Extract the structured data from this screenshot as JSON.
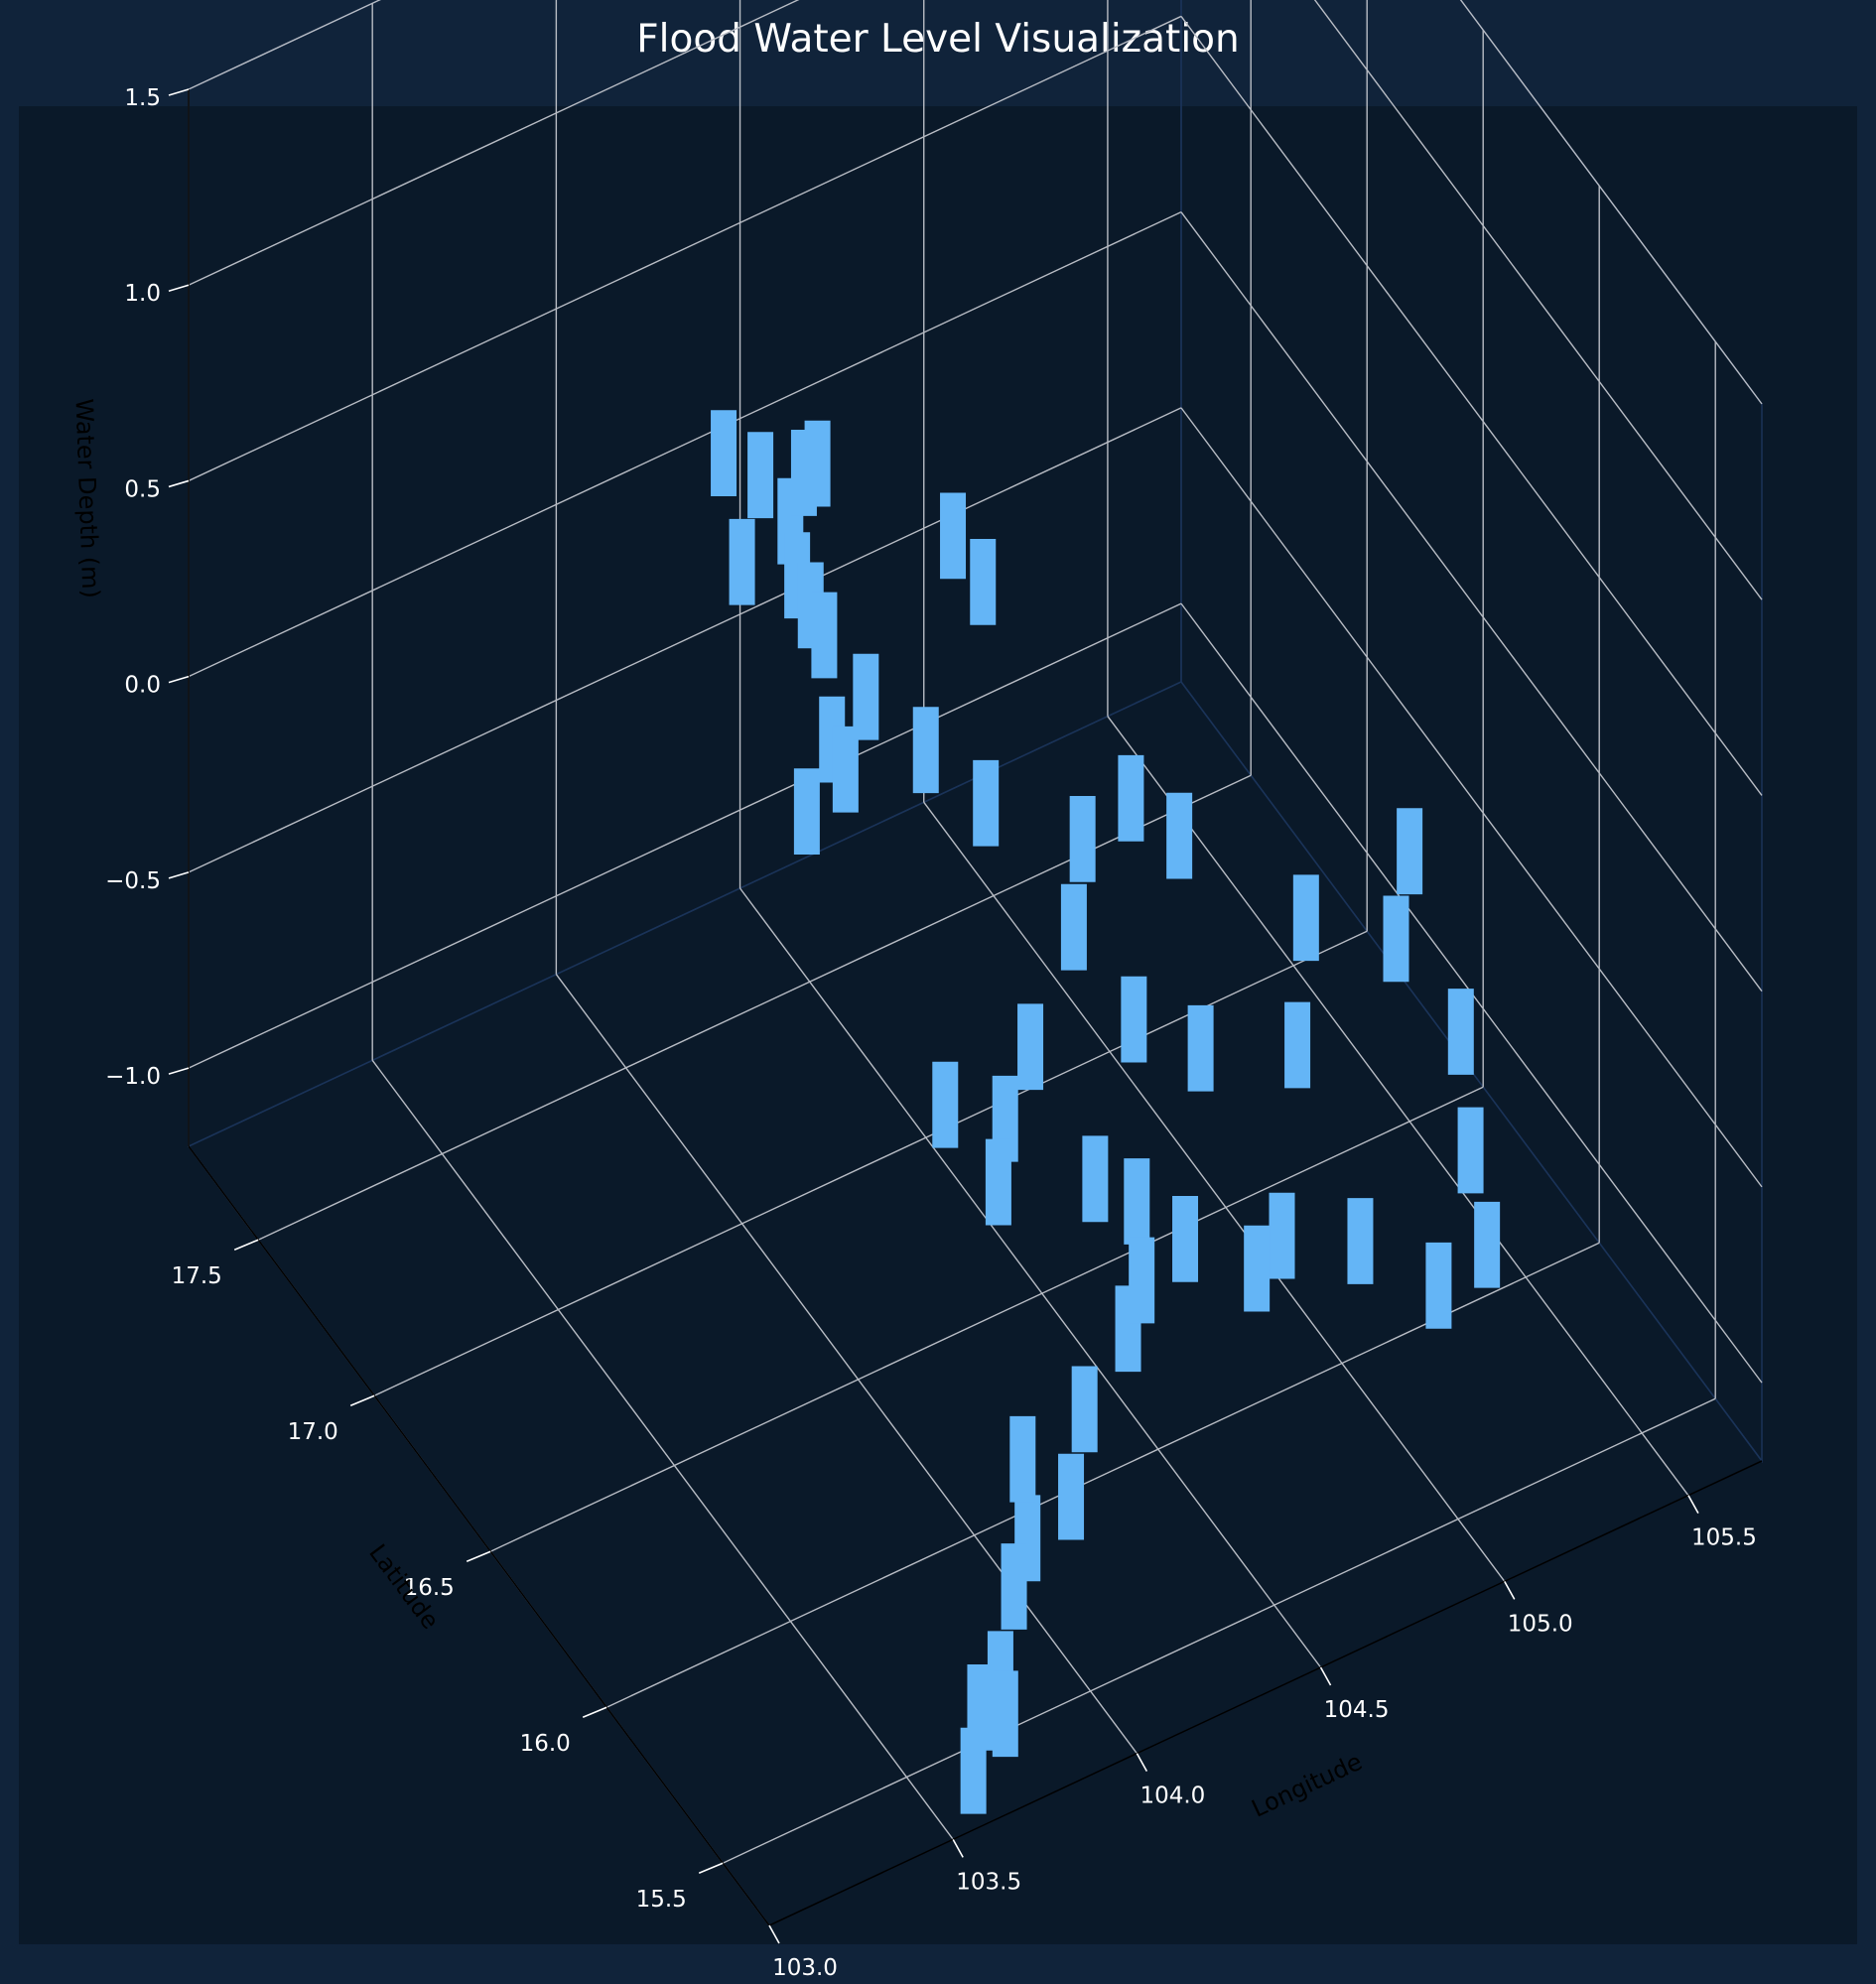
{
  "chart_data": {
    "type": "scatter",
    "title": "Flood Water Level Visualization",
    "xlabel": "Longitude",
    "ylabel": "Latitude",
    "zlabel": "Water Depth (m)",
    "xlim": [
      103.0,
      105.7
    ],
    "ylim": [
      15.3,
      17.8
    ],
    "zlim": [
      -1.2,
      1.5
    ],
    "x_ticks": [
      "103.0",
      "103.5",
      "104.0",
      "104.5",
      "105.0",
      "105.5"
    ],
    "y_ticks": [
      "15.5",
      "16.0",
      "16.5",
      "17.0",
      "17.5"
    ],
    "z_ticks": [
      "−1.0",
      "−0.5",
      "0.0",
      "0.5",
      "1.0",
      "1.5"
    ],
    "grid": true,
    "series": [
      {
        "color": "#64b5f6",
        "points": [
          [
            103.95,
            17.0,
            0.9
          ],
          [
            104.0,
            17.0,
            0.6
          ],
          [
            104.05,
            17.0,
            0.8
          ],
          [
            104.1,
            16.95,
            0.7
          ],
          [
            104.15,
            17.0,
            0.5
          ],
          [
            104.2,
            17.05,
            0.7
          ],
          [
            104.25,
            17.1,
            0.3
          ],
          [
            104.3,
            17.15,
            0.6
          ],
          [
            104.35,
            17.2,
            0.1
          ],
          [
            104.15,
            16.85,
            0.2
          ],
          [
            104.05,
            16.8,
            0.1
          ],
          [
            104.25,
            16.95,
            0.0
          ],
          [
            104.4,
            17.1,
            0.0
          ],
          [
            104.5,
            17.0,
            -0.1
          ],
          [
            104.7,
            17.2,
            0.2
          ],
          [
            104.75,
            17.15,
            0.1
          ],
          [
            104.6,
            16.9,
            -0.2
          ],
          [
            104.8,
            16.8,
            -0.3
          ],
          [
            104.9,
            16.75,
            -0.2
          ],
          [
            105.0,
            16.7,
            -0.3
          ],
          [
            104.65,
            16.6,
            -0.3
          ],
          [
            104.5,
            16.55,
            -0.5
          ],
          [
            104.4,
            16.5,
            -0.6
          ],
          [
            104.35,
            16.45,
            -0.7
          ],
          [
            104.3,
            16.6,
            -0.6
          ],
          [
            104.55,
            16.35,
            -0.7
          ],
          [
            104.7,
            16.2,
            -0.8
          ],
          [
            104.9,
            16.1,
            -0.8
          ],
          [
            105.05,
            16.0,
            -0.8
          ],
          [
            105.2,
            15.9,
            -0.9
          ],
          [
            105.3,
            15.85,
            -0.8
          ],
          [
            105.35,
            16.0,
            -0.7
          ],
          [
            105.45,
            16.2,
            -0.6
          ],
          [
            105.4,
            16.4,
            -0.5
          ],
          [
            105.5,
            16.5,
            -0.4
          ],
          [
            105.25,
            16.55,
            -0.5
          ],
          [
            105.1,
            16.35,
            -0.6
          ],
          [
            104.9,
            16.45,
            -0.6
          ],
          [
            104.75,
            16.5,
            -0.5
          ],
          [
            104.6,
            16.25,
            -0.7
          ],
          [
            104.45,
            16.05,
            -0.8
          ],
          [
            104.3,
            16.0,
            -0.9
          ],
          [
            104.2,
            15.9,
            -1.0
          ],
          [
            104.05,
            15.85,
            -1.0
          ],
          [
            103.95,
            15.75,
            -1.0
          ],
          [
            103.85,
            15.65,
            -1.1
          ],
          [
            103.8,
            15.55,
            -1.1
          ],
          [
            103.7,
            15.5,
            -1.0
          ],
          [
            103.65,
            15.45,
            -1.1
          ],
          [
            104.1,
            15.95,
            -0.9
          ],
          [
            104.55,
            16.15,
            -0.8
          ],
          [
            104.8,
            16.05,
            -0.8
          ]
        ]
      }
    ]
  }
}
